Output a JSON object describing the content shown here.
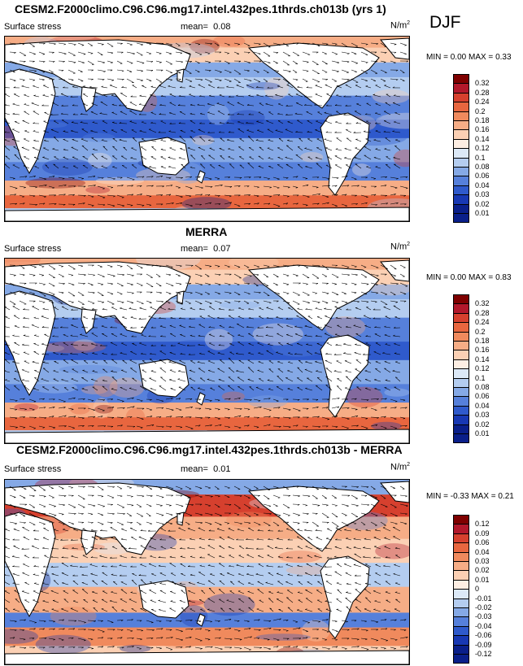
{
  "season": "DJF",
  "units": "N/m",
  "units_sup": "2",
  "panels": [
    {
      "title": "CESM2.F2000climo.C96.C96.mg17.intel.432pes.1thrds.ch013b (yrs 1)",
      "field": "Surface stress",
      "mean_label": "mean=",
      "mean": "0.08",
      "min_label": "MIN =",
      "min": "0.00",
      "max_label": "MAX =",
      "max": "0.33",
      "levels": [
        "0.32",
        "0.28",
        "0.24",
        "0.2",
        "0.18",
        "0.16",
        "0.14",
        "0.12",
        "0.1",
        "0.08",
        "0.06",
        "0.04",
        "0.03",
        "0.02",
        "0.01"
      ]
    },
    {
      "title": "MERRA",
      "field": "Surface stress",
      "mean_label": "mean=",
      "mean": "0.07",
      "min_label": "MIN =",
      "min": "0.00",
      "max_label": "MAX =",
      "max": "0.83",
      "levels": [
        "0.32",
        "0.28",
        "0.24",
        "0.2",
        "0.18",
        "0.16",
        "0.14",
        "0.12",
        "0.1",
        "0.08",
        "0.06",
        "0.04",
        "0.03",
        "0.02",
        "0.01"
      ]
    },
    {
      "title": "CESM2.F2000climo.C96.C96.mg17.intel.432pes.1thrds.ch013b - MERRA",
      "field": "Surface stress",
      "mean_label": "mean=",
      "mean": "0.01",
      "min_label": "MIN =",
      "min": "-0.33",
      "max_label": "MAX =",
      "max": "0.21",
      "levels": [
        "0.12",
        "0.09",
        "0.06",
        "0.04",
        "0.03",
        "0.02",
        "0.01",
        "0",
        "-0.01",
        "-0.02",
        "-0.03",
        "-0.04",
        "-0.06",
        "-0.09",
        "-0.12"
      ]
    }
  ],
  "colors": {
    "palette": [
      "#7f0000",
      "#b2182b",
      "#d6402e",
      "#e8663f",
      "#f08a5d",
      "#f6ad86",
      "#fbd0b4",
      "#fdeee3",
      "#dce9f7",
      "#b4cdf0",
      "#85a9e6",
      "#5680db",
      "#2f5acc",
      "#1838b3",
      "#0a1f8a"
    ],
    "land": "#ffffff",
    "ocean_base": "#2f5acc"
  }
}
